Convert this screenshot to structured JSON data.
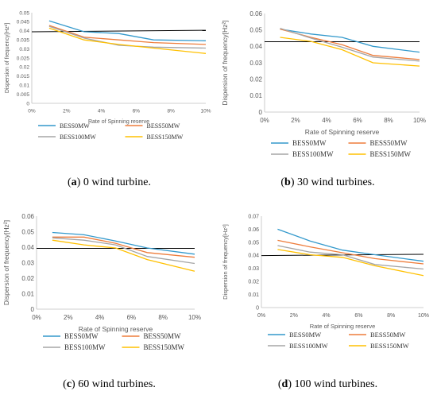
{
  "panels": [
    {
      "caption_letter": "a",
      "caption_text": "0 wind turbine.",
      "chart_data": {
        "type": "line",
        "x": [
          1,
          3,
          5,
          7,
          10
        ],
        "xlabel": "Rate of Spinning reserve",
        "ylabel": "Dispersion of frequency[Hz²]",
        "xlim": [
          0,
          10
        ],
        "x_ticks": [
          "0%",
          "2%",
          "4%",
          "6%",
          "8%",
          "10%"
        ],
        "ylim": [
          0,
          0.05
        ],
        "y_ticks": [
          "0",
          "0.005",
          "0.01",
          "0.015",
          "0.02",
          "0.025",
          "0.03",
          "0.035",
          "0.04",
          "0.045",
          "0.05"
        ],
        "threshold": [
          0.0395,
          0.0403
        ],
        "series": [
          {
            "name": "BESS0MW",
            "values": [
              0.0455,
              0.0395,
              0.0385,
              0.035,
              0.0345
            ]
          },
          {
            "name": "BESS50MW",
            "values": [
              0.043,
              0.0365,
              0.035,
              0.0335,
              0.0325
            ]
          },
          {
            "name": "BESS100MW",
            "values": [
              0.0425,
              0.036,
              0.032,
              0.031,
              0.0305
            ]
          },
          {
            "name": "BESS150MW",
            "values": [
              0.0415,
              0.035,
              0.0325,
              0.0305,
              0.0275
            ]
          }
        ],
        "legend": "bottom",
        "grid": false
      }
    },
    {
      "caption_letter": "b",
      "caption_text": "30 wind turbines.",
      "chart_data": {
        "type": "line",
        "x": [
          1,
          3,
          5,
          7,
          10
        ],
        "xlabel": "Rate of Spinning reserve",
        "ylabel": "Dispersion of frequency[Hz²]",
        "xlim": [
          0,
          10
        ],
        "x_ticks": [
          "0%",
          "2%",
          "4%",
          "6%",
          "8%",
          "10%"
        ],
        "ylim": [
          0,
          0.06
        ],
        "y_ticks": [
          "0",
          "0.01",
          "0.02",
          "0.03",
          "0.04",
          "0.05",
          "0.06"
        ],
        "threshold": [
          0.0428,
          0.0428
        ],
        "series": [
          {
            "name": "BESS0MW",
            "values": [
              0.0505,
              0.0475,
              0.0455,
              0.04,
              0.0365
            ]
          },
          {
            "name": "BESS50MW",
            "values": [
              0.0505,
              0.0455,
              0.041,
              0.0345,
              0.032
            ]
          },
          {
            "name": "BESS100MW",
            "values": [
              0.051,
              0.045,
              0.0395,
              0.0335,
              0.031
            ]
          },
          {
            "name": "BESS150MW",
            "values": [
              0.0455,
              0.043,
              0.038,
              0.03,
              0.028
            ]
          }
        ],
        "legend": "bottom",
        "grid": false
      }
    },
    {
      "caption_letter": "c",
      "caption_text": "60 wind turbines.",
      "chart_data": {
        "type": "line",
        "x": [
          1,
          3,
          5,
          7,
          10
        ],
        "xlabel": "Rate of Spinning reserve",
        "ylabel": "Dispersion of frequency[Hz²]",
        "xlim": [
          0,
          10
        ],
        "x_ticks": [
          "0%",
          "2%",
          "4%",
          "6%",
          "8%",
          "10%"
        ],
        "ylim": [
          0,
          0.06
        ],
        "y_ticks": [
          "0",
          "0.01",
          "0.02",
          "0.03",
          "0.04",
          "0.05",
          "0.06"
        ],
        "threshold": [
          0.0392,
          0.0392
        ],
        "series": [
          {
            "name": "BESS0MW",
            "values": [
              0.0495,
              0.048,
              0.044,
              0.0395,
              0.0355
            ]
          },
          {
            "name": "BESS50MW",
            "values": [
              0.0465,
              0.0465,
              0.0425,
              0.0365,
              0.0335
            ]
          },
          {
            "name": "BESS100MW",
            "values": [
              0.046,
              0.0445,
              0.0415,
              0.034,
              0.0295
            ]
          },
          {
            "name": "BESS150MW",
            "values": [
              0.0445,
              0.0415,
              0.0395,
              0.032,
              0.0245
            ]
          }
        ],
        "legend": "bottom",
        "grid": false
      }
    },
    {
      "caption_letter": "d",
      "caption_text": "100 wind turbines.",
      "chart_data": {
        "type": "line",
        "x": [
          1,
          3,
          5,
          7,
          10
        ],
        "xlabel": "Rate of Spinning reserve",
        "ylabel": "Dispersion of frequency[Hz²]",
        "xlim": [
          0,
          10
        ],
        "x_ticks": [
          "0%",
          "2%",
          "4%",
          "6%",
          "8%",
          "10%"
        ],
        "ylim": [
          0,
          0.07
        ],
        "y_ticks": [
          "0",
          "0.01",
          "0.02",
          "0.03",
          "0.04",
          "0.05",
          "0.06",
          "0.07"
        ],
        "threshold": [
          0.0398,
          0.0408
        ],
        "series": [
          {
            "name": "BESS0MW",
            "values": [
              0.06,
              0.051,
              0.044,
              0.0405,
              0.0355
            ]
          },
          {
            "name": "BESS50MW",
            "values": [
              0.0515,
              0.0465,
              0.042,
              0.0375,
              0.0335
            ]
          },
          {
            "name": "BESS100MW",
            "values": [
              0.0475,
              0.0425,
              0.0405,
              0.033,
              0.0295
            ]
          },
          {
            "name": "BESS150MW",
            "values": [
              0.0445,
              0.0405,
              0.0385,
              0.032,
              0.0245
            ]
          }
        ],
        "legend": "bottom",
        "grid": false
      }
    }
  ],
  "colors": {
    "BESS0MW": "#3399cc",
    "BESS50MW": "#ee7d3c",
    "BESS100MW": "#a5a5a5",
    "BESS150MW": "#ffc000",
    "threshold": "#000000",
    "axis": "#bfbfbf",
    "text": "#595959"
  }
}
